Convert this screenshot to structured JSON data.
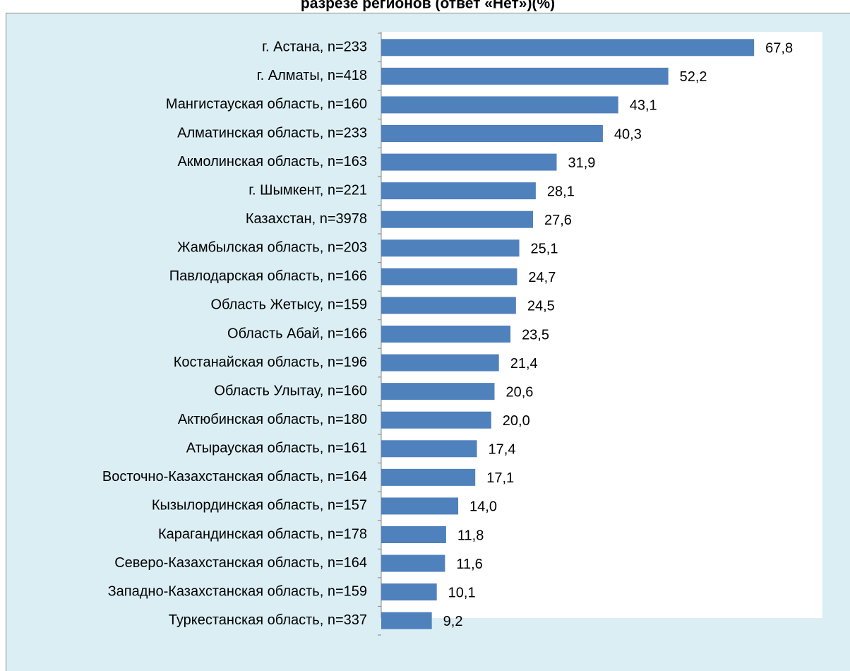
{
  "chart_data": {
    "type": "barh",
    "title": "разрезе регионов (ответ «Нет»)(%)",
    "categories": [
      "г. Астана, n=233",
      "г. Алматы, n=418",
      "Мангистауская область, n=160",
      "Алматинская область, n=233",
      "Акмолинская область, n=163",
      "г. Шымкент, n=221",
      "Казахстан, n=3978",
      "Жамбылская область, n=203",
      "Павлодарская область, n=166",
      "Область Жетысу, n=159",
      "Область Абай, n=166",
      "Костанайская область, n=196",
      "Область Улытау, n=160",
      "Актюбинская область, n=180",
      "Атырауская область, n=161",
      "Восточно-Казахстанская область, n=164",
      "Кызылординская область, n=157",
      "Карагандинская область, n=178",
      "Северо-Казахстанская область, n=164",
      "Западно-Казахстанская область, n=159",
      "Туркестанская область, n=337"
    ],
    "values": [
      67.8,
      52.2,
      43.1,
      40.3,
      31.9,
      28.1,
      27.6,
      25.1,
      24.7,
      24.5,
      23.5,
      21.4,
      20.6,
      20.0,
      17.4,
      17.1,
      14.0,
      11.8,
      11.6,
      10.1,
      9.2
    ],
    "value_labels": [
      "67,8",
      "52,2",
      "43,1",
      "40,3",
      "31,9",
      "28,1",
      "27,6",
      "25,1",
      "24,7",
      "24,5",
      "23,5",
      "21,4",
      "20,6",
      "20,0",
      "17,4",
      "17,1",
      "14,0",
      "11,8",
      "11,6",
      "10,1",
      "9,2"
    ],
    "color": "#4f81bd"
  }
}
